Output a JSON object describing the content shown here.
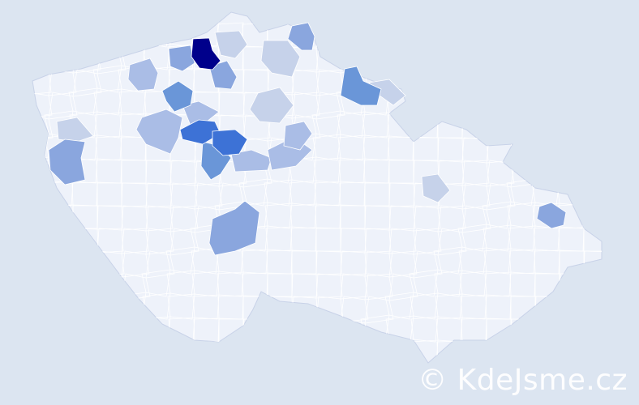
{
  "map": {
    "country_fill": "#eef2fa",
    "border_color": "#c8d2e8",
    "background": "#dce5f1",
    "color_scale": [
      "#dde1ec",
      "#c6d2ea",
      "#aabde6",
      "#8aa6de",
      "#6a96d8",
      "#3d72d6",
      "#00008b"
    ],
    "highlighted_districts": [
      {
        "level": 6
      },
      {
        "level": 5
      },
      {
        "level": 5
      },
      {
        "level": 4
      },
      {
        "level": 4
      },
      {
        "level": 4
      },
      {
        "level": 3
      },
      {
        "level": 3
      },
      {
        "level": 3
      },
      {
        "level": 3
      },
      {
        "level": 3
      },
      {
        "level": 3
      },
      {
        "level": 2
      },
      {
        "level": 2
      },
      {
        "level": 2
      },
      {
        "level": 2
      },
      {
        "level": 2
      },
      {
        "level": 2
      },
      {
        "level": 1
      },
      {
        "level": 1
      },
      {
        "level": 1
      },
      {
        "level": 1
      },
      {
        "level": 1
      },
      {
        "level": 1
      }
    ]
  },
  "watermark": "© KdeJsme.cz"
}
